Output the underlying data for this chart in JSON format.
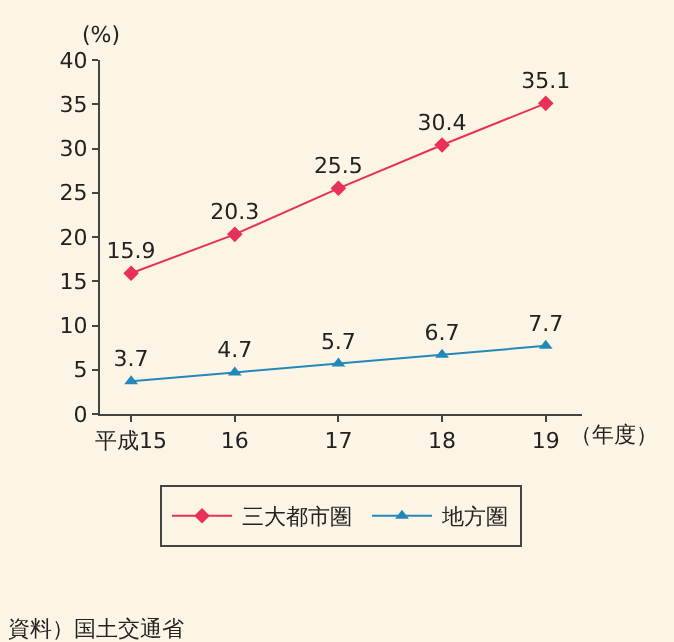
{
  "chart_data": {
    "type": "line",
    "ylabel": "(%)",
    "xlabel": "（年度）",
    "categories": [
      "平成15",
      "16",
      "17",
      "18",
      "19"
    ],
    "series": [
      {
        "name": "三大都市圏",
        "color": "#e8305a",
        "marker": "diamond",
        "values": [
          15.9,
          20.3,
          25.5,
          30.4,
          35.1
        ]
      },
      {
        "name": "地方圏",
        "color": "#2288b8",
        "marker": "triangle",
        "values": [
          3.7,
          4.7,
          5.7,
          6.7,
          7.7
        ]
      }
    ],
    "ylim": [
      0,
      40
    ],
    "yticks": [
      0,
      5,
      10,
      15,
      20,
      25,
      30,
      35,
      40
    ],
    "grid": false,
    "legend": "bottom",
    "data_labels": true,
    "annotations": [
      "資料）国土交通省"
    ]
  }
}
